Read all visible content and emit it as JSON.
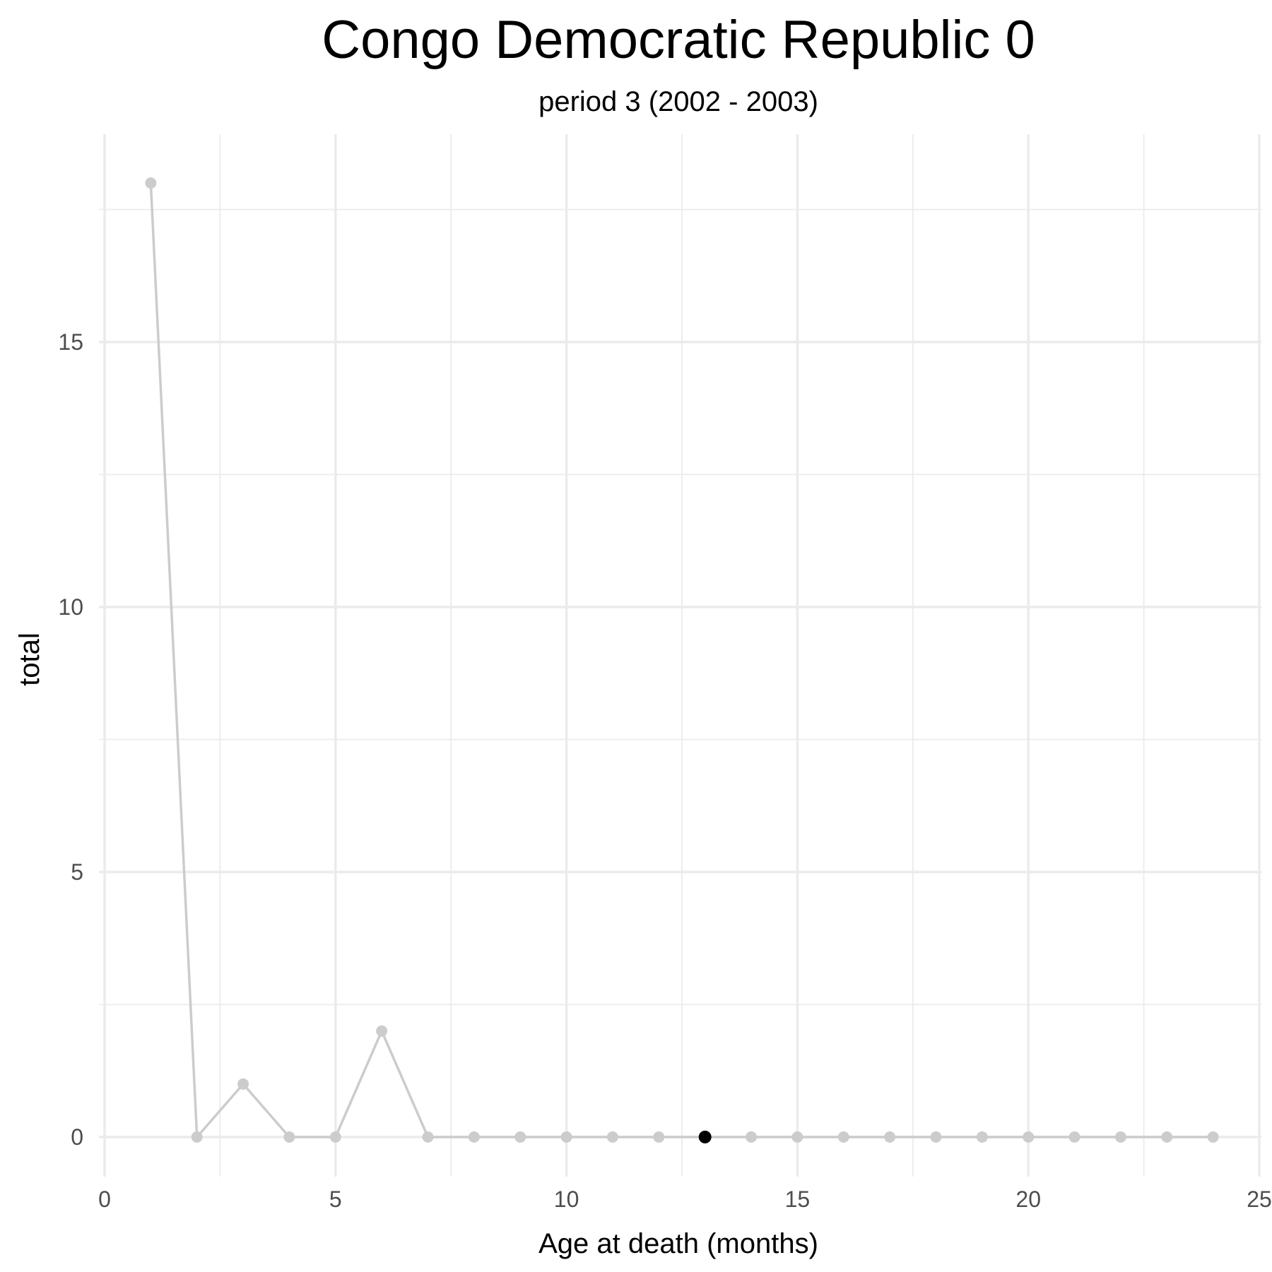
{
  "chart_data": {
    "type": "line",
    "title": "Congo Democratic Republic 0",
    "subtitle": "period 3 (2002 - 2003)",
    "xlabel": "Age at death (months)",
    "ylabel": "total",
    "xlim": [
      0,
      25
    ],
    "ylim": [
      -0.9,
      18.9
    ],
    "x_ticks": [
      0,
      5,
      10,
      15,
      20,
      25
    ],
    "y_ticks": [
      0,
      5,
      10,
      15
    ],
    "grid": true,
    "legend": "none",
    "series": [
      {
        "x": [
          1,
          2,
          3,
          4,
          5,
          6,
          7,
          8,
          9,
          10,
          11,
          12,
          13,
          14,
          15,
          16,
          17,
          18,
          19,
          20,
          21,
          22,
          23,
          24
        ],
        "values": [
          18,
          0,
          1,
          0,
          0,
          2,
          0,
          0,
          0,
          0,
          0,
          0,
          0,
          0,
          0,
          0,
          0,
          0,
          0,
          0,
          0,
          0,
          0,
          0
        ],
        "color": "#cccccc"
      }
    ],
    "highlight": {
      "x": 13,
      "y": 0,
      "color": "#000000"
    }
  }
}
